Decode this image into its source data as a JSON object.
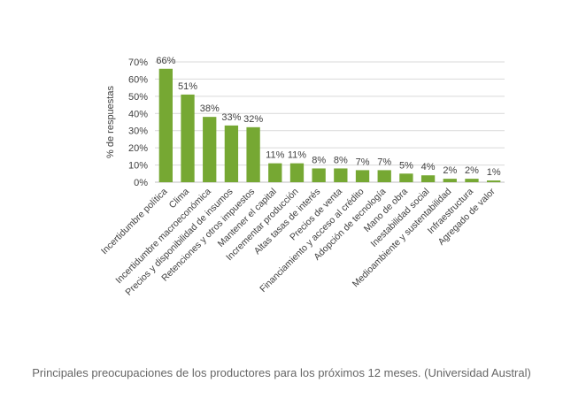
{
  "chart_data": {
    "type": "bar",
    "categories": [
      "Incertidumbre política",
      "Clima",
      "Incertidumbre macroeconómica",
      "Precios y disponibilidad de insumos",
      "Retenciones y otros impuestos",
      "Mantener el capital",
      "Incrementar producción",
      "Altas tasas de interés",
      "Precios de venta",
      "Financiamiento y acceso al crédito",
      "Adopción de tecnología",
      "Mano de obra",
      "Inestabilidad social",
      "Medioambiente y sustentabilidad",
      "Infraestructura",
      "Agregado de valor"
    ],
    "values": [
      66,
      51,
      38,
      33,
      32,
      11,
      11,
      8,
      8,
      7,
      7,
      5,
      4,
      2,
      2,
      1
    ],
    "value_labels": [
      "66%",
      "51%",
      "38%",
      "33%",
      "32%",
      "11%",
      "11%",
      "8%",
      "8%",
      "7%",
      "7%",
      "5%",
      "4%",
      "2%",
      "2%",
      "1%"
    ],
    "ylabel": "% de respuestas",
    "xlabel": "",
    "ylim": [
      0,
      70
    ],
    "yticks": [
      0,
      10,
      20,
      30,
      40,
      50,
      60,
      70
    ],
    "ytick_labels": [
      "0%",
      "10%",
      "20%",
      "30%",
      "40%",
      "50%",
      "60%",
      "70%"
    ],
    "grid": true,
    "bar_color": "#76a833",
    "grid_color": "#d9d9d9"
  },
  "caption": "Principales preocupaciones de los productores para los próximos 12 meses. (Universidad Austral)"
}
